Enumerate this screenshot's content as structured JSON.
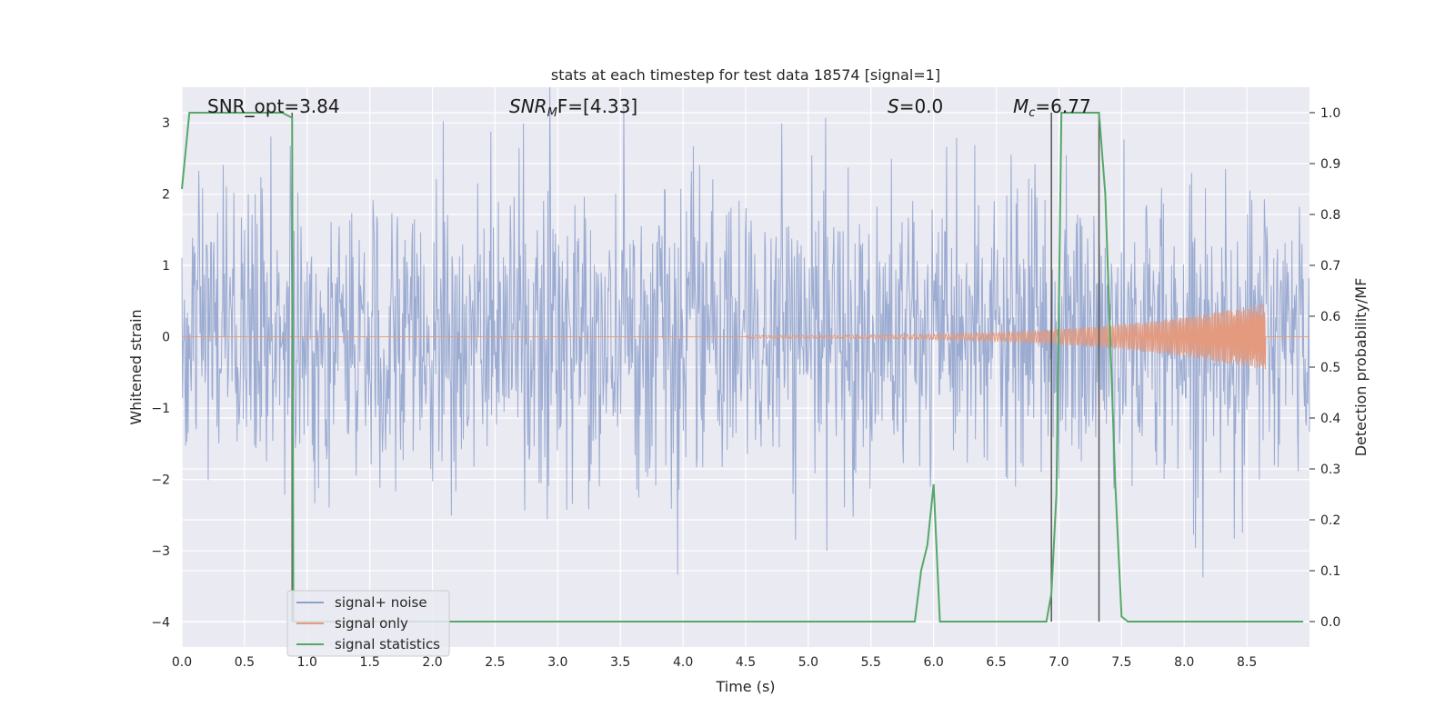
{
  "chart_data": {
    "type": "line",
    "title": "stats at each timestep for test data 18574 [signal=1]",
    "xlabel": "Time (s)",
    "ylabel": "Whitened strain",
    "y2label": "Detection probability/MF",
    "xlim": [
      0.0,
      9.0
    ],
    "ylim": [
      -4.35,
      3.5
    ],
    "y2lim": [
      -0.05,
      1.05
    ],
    "x_ticks": [
      "0.0",
      "0.5",
      "1.0",
      "1.5",
      "2.0",
      "2.5",
      "3.0",
      "3.5",
      "4.0",
      "4.5",
      "5.0",
      "5.5",
      "6.0",
      "6.5",
      "7.0",
      "7.5",
      "8.0",
      "8.5"
    ],
    "y_ticks": [
      "3",
      "2",
      "1",
      "0",
      "−1",
      "−2",
      "−3",
      "−4"
    ],
    "y2_ticks": [
      "1.0",
      "0.9",
      "0.8",
      "0.7",
      "0.6",
      "0.5",
      "0.4",
      "0.3",
      "0.2",
      "0.1",
      "0.0"
    ],
    "grid": true,
    "legend_placement": "lower-left",
    "annotations": [
      {
        "name": "snr-opt",
        "text": "SNR_opt=3.84",
        "x": 0.19
      },
      {
        "name": "snr-mf",
        "text_main": "SNR",
        "text_sub": "M",
        "text_rest": "F=[4.33]",
        "x": 2.6
      },
      {
        "name": "s-value",
        "text_main": "S",
        "text_rest": "=0.0",
        "x": 5.61
      },
      {
        "name": "mc-value",
        "text_main": "M",
        "text_sub": "c",
        "text_rest": "=6.77",
        "x": 6.61
      }
    ],
    "vertical_markers": [
      {
        "name": "marker-1",
        "x": 0.88,
        "y2_top": 1.0,
        "y2_bottom": 0.0
      },
      {
        "name": "marker-2",
        "x": 6.94,
        "y2_top": 1.0,
        "y2_bottom": 0.0
      },
      {
        "name": "marker-3",
        "x": 7.32,
        "y2_top": 1.0,
        "y2_bottom": 0.0
      }
    ],
    "series": [
      {
        "name": "signal+ noise",
        "color": "#8da0cb",
        "description_values": "whitened noise, roughly ±2 with spikes to ±3.5",
        "x_start": 0.0,
        "x_end": 9.0
      },
      {
        "name": "signal only",
        "color": "#e49a7e",
        "chirp_start": 4.5,
        "chirp_end": 8.65,
        "peak_amplitude": 0.45
      },
      {
        "name": "signal statistics",
        "color": "#55a868",
        "axis": "right",
        "x": [
          0.0,
          0.06,
          0.12,
          0.5,
          0.8,
          0.88,
          0.89,
          0.93,
          1.0,
          5.85,
          5.9,
          5.95,
          6.0,
          6.05,
          6.1,
          6.9,
          6.94,
          6.98,
          7.02,
          7.25,
          7.32,
          7.37,
          7.45,
          7.5,
          7.55,
          8.95
        ],
        "y": [
          0.85,
          1.0,
          1.0,
          1.0,
          1.0,
          0.99,
          0.0,
          0.0,
          0.0,
          0.0,
          0.1,
          0.15,
          0.27,
          0.0,
          0.0,
          0.0,
          0.055,
          0.25,
          1.0,
          1.0,
          1.0,
          0.84,
          0.27,
          0.01,
          0.0,
          0.0
        ]
      }
    ]
  },
  "colors": {
    "plot_bg": "#eaeaf2",
    "grid": "#ffffff",
    "noise": "#8da0cb",
    "signal": "#e49a7e",
    "stats": "#55a868",
    "marker": "#555555"
  }
}
